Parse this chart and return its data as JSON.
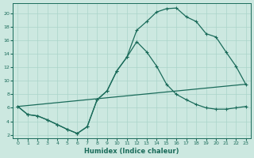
{
  "xlabel": "Humidex (Indice chaleur)",
  "bg_color": "#cce8e0",
  "grid_color": "#aad4ca",
  "line_color": "#1a6b5a",
  "xlim": [
    -0.5,
    23.5
  ],
  "ylim": [
    1.5,
    21.5
  ],
  "xticks": [
    0,
    1,
    2,
    3,
    4,
    5,
    6,
    7,
    8,
    9,
    10,
    11,
    12,
    13,
    14,
    15,
    16,
    17,
    18,
    19,
    20,
    21,
    22,
    23
  ],
  "yticks": [
    2,
    4,
    6,
    8,
    10,
    12,
    14,
    16,
    18,
    20
  ],
  "line1_x": [
    0,
    1,
    2,
    3,
    4,
    5,
    6,
    7,
    8,
    9,
    10,
    11,
    12,
    13,
    14,
    15,
    16,
    17,
    18,
    19,
    20,
    21,
    22,
    23
  ],
  "line1_y": [
    6.2,
    5.0,
    4.8,
    4.2,
    3.5,
    2.8,
    2.2,
    3.2,
    7.2,
    8.5,
    11.5,
    13.5,
    17.5,
    18.8,
    20.2,
    20.7,
    20.8,
    19.5,
    18.8,
    17.0,
    16.5,
    14.3,
    12.2,
    9.5
  ],
  "line2_x": [
    0,
    1,
    2,
    3,
    4,
    5,
    6,
    7,
    8,
    9,
    10,
    11,
    12,
    13,
    14,
    15,
    16,
    17,
    18,
    19,
    20,
    21,
    22,
    23
  ],
  "line2_y": [
    6.2,
    5.0,
    4.8,
    4.2,
    3.5,
    2.8,
    2.2,
    3.2,
    7.2,
    8.5,
    11.5,
    13.5,
    15.8,
    14.3,
    12.2,
    9.5,
    8.0,
    7.2,
    6.5,
    6.0,
    5.8,
    5.8,
    6.0,
    6.2
  ],
  "line3_x": [
    0,
    23
  ],
  "line3_y": [
    6.2,
    9.5
  ]
}
